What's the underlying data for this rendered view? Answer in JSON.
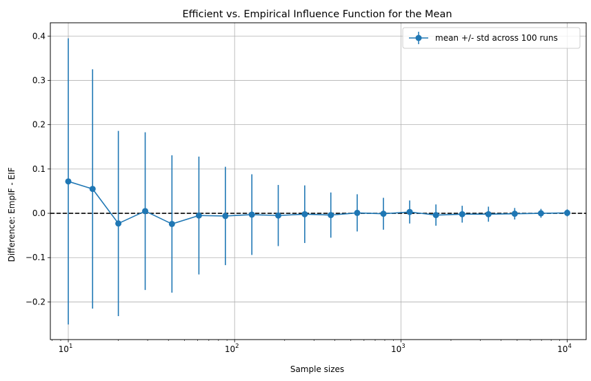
{
  "chart_data": {
    "type": "scatter",
    "title": "Efficient vs. Empirical Influence Function for the Mean",
    "xlabel": "Sample sizes",
    "ylabel": "Difference: EmpIF - EIF",
    "x_scale": "log",
    "xlim": [
      7.8,
      13000
    ],
    "ylim": [
      -0.285,
      0.43
    ],
    "x_ticks": [
      {
        "value": 10,
        "base": "10",
        "exp": "1"
      },
      {
        "value": 100,
        "base": "10",
        "exp": "2"
      },
      {
        "value": 1000,
        "base": "10",
        "exp": "3"
      },
      {
        "value": 10000,
        "base": "10",
        "exp": "4"
      }
    ],
    "y_ticks": [
      -0.2,
      -0.1,
      0.0,
      0.1,
      0.2,
      0.3,
      0.4
    ],
    "y_tick_labels": [
      "−0.2",
      "−0.1",
      "0.0",
      "0.1",
      "0.2",
      "0.3",
      "0.4"
    ],
    "grid": true,
    "legend_position": "top-right",
    "reference_line": {
      "y": 0,
      "style": "dashed",
      "color": "#000000"
    },
    "series": [
      {
        "name": "mean +/- std across 100 runs",
        "color": "#1f77b4",
        "points": [
          {
            "x": 10,
            "y": 0.072,
            "yerr": 0.323
          },
          {
            "x": 14,
            "y": 0.055,
            "yerr": 0.27
          },
          {
            "x": 20,
            "y": -0.023,
            "yerr": 0.209
          },
          {
            "x": 29,
            "y": 0.005,
            "yerr": 0.178
          },
          {
            "x": 42,
            "y": -0.024,
            "yerr": 0.155
          },
          {
            "x": 61,
            "y": -0.005,
            "yerr": 0.133
          },
          {
            "x": 88,
            "y": -0.006,
            "yerr": 0.111
          },
          {
            "x": 127,
            "y": -0.003,
            "yerr": 0.091
          },
          {
            "x": 183,
            "y": -0.005,
            "yerr": 0.069
          },
          {
            "x": 264,
            "y": -0.002,
            "yerr": 0.065
          },
          {
            "x": 379,
            "y": -0.004,
            "yerr": 0.051
          },
          {
            "x": 546,
            "y": 0.001,
            "yerr": 0.042
          },
          {
            "x": 785,
            "y": -0.001,
            "yerr": 0.036
          },
          {
            "x": 1129,
            "y": 0.003,
            "yerr": 0.026
          },
          {
            "x": 1624,
            "y": -0.004,
            "yerr": 0.024
          },
          {
            "x": 2336,
            "y": -0.002,
            "yerr": 0.019
          },
          {
            "x": 3360,
            "y": -0.002,
            "yerr": 0.017
          },
          {
            "x": 4833,
            "y": -0.001,
            "yerr": 0.013
          },
          {
            "x": 6952,
            "y": 0.0,
            "yerr": 0.01
          },
          {
            "x": 10000,
            "y": 0.001,
            "yerr": 0.008
          }
        ]
      }
    ]
  }
}
